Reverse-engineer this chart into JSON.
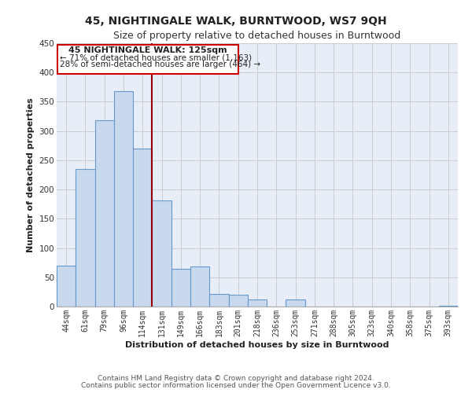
{
  "title": "45, NIGHTINGALE WALK, BURNTWOOD, WS7 9QH",
  "subtitle": "Size of property relative to detached houses in Burntwood",
  "xlabel": "Distribution of detached houses by size in Burntwood",
  "ylabel": "Number of detached properties",
  "footer_line1": "Contains HM Land Registry data © Crown copyright and database right 2024.",
  "footer_line2": "Contains public sector information licensed under the Open Government Licence v3.0.",
  "bar_labels": [
    "44sqm",
    "61sqm",
    "79sqm",
    "96sqm",
    "114sqm",
    "131sqm",
    "149sqm",
    "166sqm",
    "183sqm",
    "201sqm",
    "218sqm",
    "236sqm",
    "253sqm",
    "271sqm",
    "288sqm",
    "305sqm",
    "323sqm",
    "340sqm",
    "358sqm",
    "375sqm",
    "393sqm"
  ],
  "bar_values": [
    70,
    235,
    318,
    368,
    270,
    182,
    65,
    68,
    22,
    20,
    12,
    0,
    12,
    0,
    0,
    0,
    0,
    0,
    0,
    0,
    2
  ],
  "bar_color": "#c8d8ed",
  "bar_edge_color": "#6699cc",
  "ylim": [
    0,
    450
  ],
  "yticks": [
    0,
    50,
    100,
    150,
    200,
    250,
    300,
    350,
    400,
    450
  ],
  "vline_x": 4.5,
  "vline_color": "#990000",
  "property_line_label": "45 NIGHTINGALE WALK: 125sqm",
  "annotation_smaller": "← 71% of detached houses are smaller (1,163)",
  "annotation_larger": "28% of semi-detached houses are larger (464) →",
  "annotation_box_edge": "#cc0000",
  "title_fontsize": 10,
  "subtitle_fontsize": 9,
  "axis_label_fontsize": 8,
  "tick_fontsize": 7,
  "annotation_fontsize": 8,
  "footer_fontsize": 6.5,
  "grid_color": "#cccccc",
  "plot_bg_color": "#e8eef8"
}
